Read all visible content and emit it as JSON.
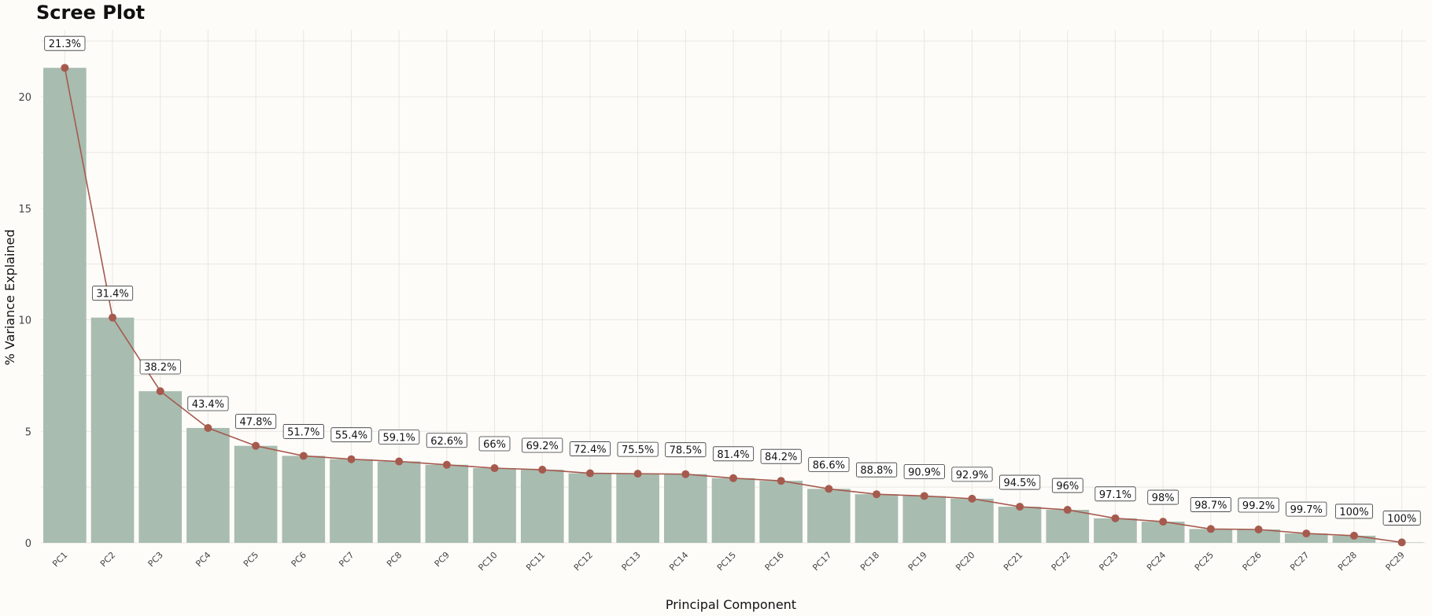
{
  "chart_data": {
    "type": "bar",
    "title": "Scree Plot",
    "xlabel": "Principal Component",
    "ylabel": "% Variance Explained",
    "ylim": [
      0,
      23
    ],
    "yticks": [
      0,
      5,
      10,
      15,
      20
    ],
    "grid": true,
    "categories": [
      "PC1",
      "PC2",
      "PC3",
      "PC4",
      "PC5",
      "PC6",
      "PC7",
      "PC8",
      "PC9",
      "PC10",
      "PC11",
      "PC12",
      "PC13",
      "PC14",
      "PC15",
      "PC16",
      "PC17",
      "PC18",
      "PC19",
      "PC20",
      "PC21",
      "PC22",
      "PC23",
      "PC24",
      "PC25",
      "PC26",
      "PC27",
      "PC28",
      "PC29"
    ],
    "values": [
      21.3,
      10.1,
      6.8,
      5.15,
      4.35,
      3.9,
      3.75,
      3.65,
      3.5,
      3.35,
      3.28,
      3.12,
      3.1,
      3.08,
      2.9,
      2.78,
      2.42,
      2.18,
      2.1,
      1.98,
      1.62,
      1.48,
      1.1,
      0.95,
      0.62,
      0.6,
      0.42,
      0.32,
      0.02
    ],
    "cumulative_labels": [
      "21.3%",
      "31.4%",
      "38.2%",
      "43.4%",
      "47.8%",
      "51.7%",
      "55.4%",
      "59.1%",
      "62.6%",
      "66%",
      "69.2%",
      "72.4%",
      "75.5%",
      "78.5%",
      "81.4%",
      "84.2%",
      "86.6%",
      "88.8%",
      "90.9%",
      "92.9%",
      "94.5%",
      "96%",
      "97.1%",
      "98%",
      "98.7%",
      "99.2%",
      "99.7%",
      "100%",
      "100%"
    ],
    "colors": {
      "bar": "#a8bcb0",
      "line": "#a65a4e",
      "point": "#a65a4e",
      "grid": "#e9e7e2",
      "background": "#fdfcf9"
    }
  }
}
